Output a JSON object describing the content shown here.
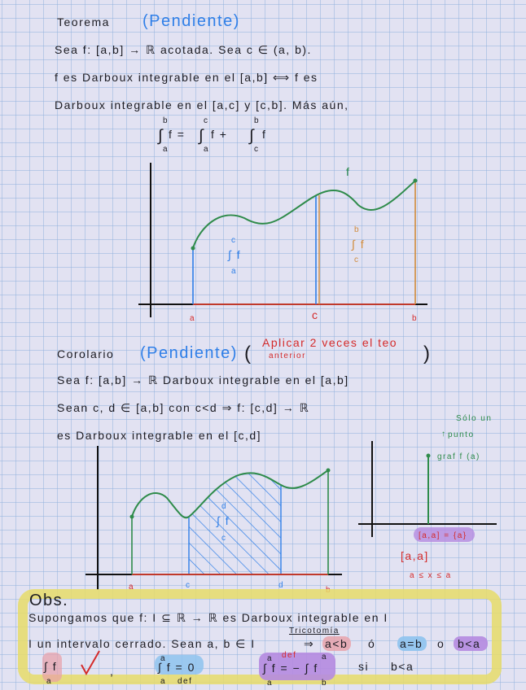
{
  "colors": {
    "paper": "#e2e2f2",
    "grid": "#8fb0dc",
    "ink": "#1b1b22",
    "pending": "#2f7fe8",
    "note": "#d42a2a",
    "curve": "#2e8b4a",
    "highlight": "#e6dc6a"
  },
  "theorem": {
    "title": "Teorema",
    "status": "(Pendiente)",
    "line1": "Sea f: [a,b] → ℝ acotada. Sea c ∈ (a, b).",
    "line2": "f es Darboux integrable en el [a,b] ⟺ f es",
    "line3": "Darboux integrable en el [a,c] y [c,b]. Más aún,",
    "formula": {
      "int_ab": "∫",
      "upper1": "b",
      "lower1": "a",
      "lhs": "f =",
      "upper2": "c",
      "lower2": "a",
      "mid": "f +",
      "upper3": "b",
      "lower3": "c",
      "rhs": "f"
    },
    "graph": {
      "f_label": "f",
      "a": "a",
      "c": "c",
      "b": "b",
      "left_int": {
        "upper": "c",
        "lower": "a",
        "body": "∫ f"
      },
      "right_int": {
        "upper": "b",
        "lower": "c",
        "body": "∫ f"
      }
    }
  },
  "corollary": {
    "title": "Corolario",
    "status": "(Pendiente)",
    "note_line1": "Aplicar 2 veces el teo",
    "note_line2": "anterior",
    "line1": "Sea f: [a,b] → ℝ Darboux integrable en el [a,b]",
    "line2": "Sean c, d ∈ [a,b] con c<d ⇒ f: [c,d] → ℝ",
    "line3": "es Darboux integrable en el [c,d]",
    "graph": {
      "a": "a",
      "c": "c",
      "d": "d",
      "b": "b",
      "int": {
        "upper": "d",
        "lower": "c",
        "body": "∫ f"
      }
    },
    "side": {
      "note1": "Sólo un",
      "note2": "punto",
      "graph_label": "graf f (a)",
      "eq": "[a,a] = {a}",
      "interval": "[a,a]",
      "ineq": "a ≤ x ≤ a"
    }
  },
  "obs": {
    "title": "Obs.",
    "line1": "Supongamos que f: I ⊆ ℝ → ℝ es Darboux integrable en I",
    "line2a": "I un intervalo cerrado. Sean a, b ∈ I",
    "tricotomia": "Tricotomía",
    "implies": "⇒",
    "case1": "a<b",
    "or1": "ó",
    "case2": "a=b",
    "or2": "o",
    "case3": "b<a",
    "f1": {
      "lower": "a",
      "body": "∫ f"
    },
    "comma": ",",
    "f2": {
      "upper": "a",
      "lower": "a",
      "body": "∫ f = 0",
      "def": "def"
    },
    "f3": {
      "upper": "a",
      "lower": "a",
      "body": "∫ f = − ∫ f",
      "upper2": "a",
      "lower2": "b",
      "def": "def"
    },
    "si": "si",
    "cond": "b<a"
  }
}
